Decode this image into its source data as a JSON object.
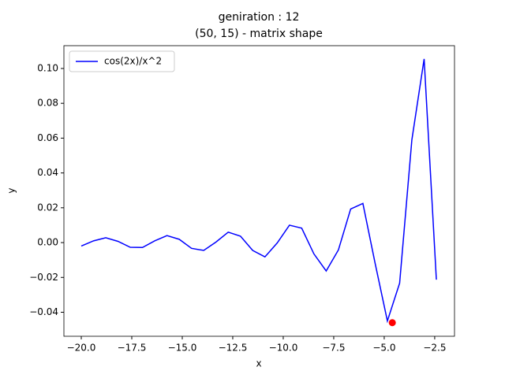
{
  "chart_data": {
    "type": "line",
    "title": [
      "geniration : 12",
      "(50, 15) - matrix shape"
    ],
    "x_label": "x",
    "y_label": "y",
    "x": [
      -20,
      -19.394,
      -18.787,
      -18.181,
      -17.575,
      -16.969,
      -16.362,
      -15.756,
      -15.15,
      -14.543,
      -13.937,
      -13.331,
      -12.724,
      -12.118,
      -11.512,
      -10.906,
      -10.299,
      -9.693,
      -9.087,
      -8.481,
      -7.874,
      -7.268,
      -6.662,
      -6.056,
      -5.449,
      -4.843,
      -4.237,
      -3.631,
      -3.024,
      -2.418
    ],
    "series": [
      {
        "name": "cos(2x)/x^2",
        "color": "#0000ff",
        "values": [
          -0.002,
          0.001,
          0.0028,
          0.0007,
          -0.0027,
          -0.0028,
          0.001,
          0.004,
          0.0019,
          -0.0033,
          -0.0045,
          0.0003,
          0.006,
          0.0037,
          -0.0045,
          -0.0082,
          -0.0002,
          0.01,
          0.0083,
          -0.0065,
          -0.0163,
          -0.0042,
          0.0193,
          0.0225,
          -0.012,
          -0.045,
          -0.0233,
          0.059,
          0.1055,
          -0.0213
        ]
      }
    ],
    "highlight_point": {
      "x": -4.6,
      "y": -0.046,
      "color": "#ff0000"
    },
    "xlim": [
      -20.86,
      -1.52
    ],
    "ylim": [
      -0.0538,
      0.1131
    ],
    "xticks": [
      {
        "value": -20,
        "label": "−20.0"
      },
      {
        "value": -17.5,
        "label": "−17.5"
      },
      {
        "value": -15,
        "label": "−15.0"
      },
      {
        "value": -12.5,
        "label": "−12.5"
      },
      {
        "value": -10,
        "label": "−10.0"
      },
      {
        "value": -7.5,
        "label": "−7.5"
      },
      {
        "value": -5,
        "label": "−5.0"
      },
      {
        "value": -2.5,
        "label": "−2.5"
      }
    ],
    "yticks": [
      {
        "value": -0.04,
        "label": "−0.04"
      },
      {
        "value": -0.02,
        "label": "−0.02"
      },
      {
        "value": 0,
        "label": "0.00"
      },
      {
        "value": 0.02,
        "label": "0.02"
      },
      {
        "value": 0.04,
        "label": "0.04"
      },
      {
        "value": 0.06,
        "label": "0.06"
      },
      {
        "value": 0.08,
        "label": "0.08"
      },
      {
        "value": 0.1,
        "label": "0.10"
      }
    ],
    "legend_position": "upper left"
  }
}
